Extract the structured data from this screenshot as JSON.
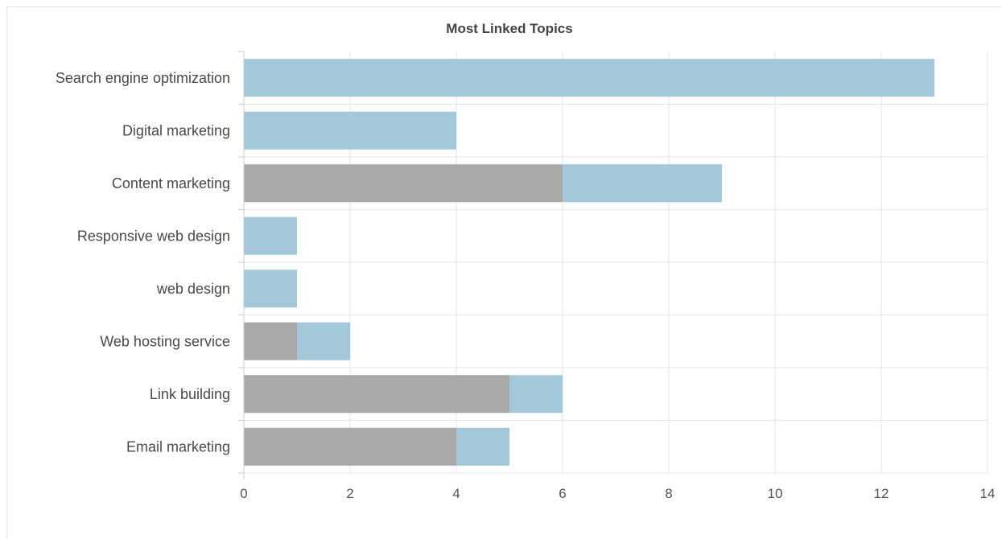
{
  "chart_data": {
    "type": "bar",
    "orientation": "horizontal",
    "stacked": true,
    "title": "Most Linked Topics",
    "xlabel": "",
    "ylabel": "",
    "xlim": [
      0,
      14
    ],
    "xticks": [
      "0",
      "2",
      "4",
      "6",
      "8",
      "10",
      "12",
      "14"
    ],
    "grid": true,
    "legend": "none",
    "categories": [
      "Search engine optimization",
      "Digital marketing",
      "Content marketing",
      "Responsive web design",
      "web design",
      "Web hosting service",
      "Link building",
      "Email marketing"
    ],
    "series": [
      {
        "color": "#a9a9a9",
        "values": [
          0,
          0,
          6,
          0,
          0,
          1,
          5,
          4
        ]
      },
      {
        "color": "#a3c8d9",
        "values": [
          13,
          4,
          3,
          1,
          1,
          1,
          1,
          1
        ]
      }
    ]
  },
  "colors": {
    "grid": "#e5e5e5",
    "axis": "#cccccc"
  }
}
